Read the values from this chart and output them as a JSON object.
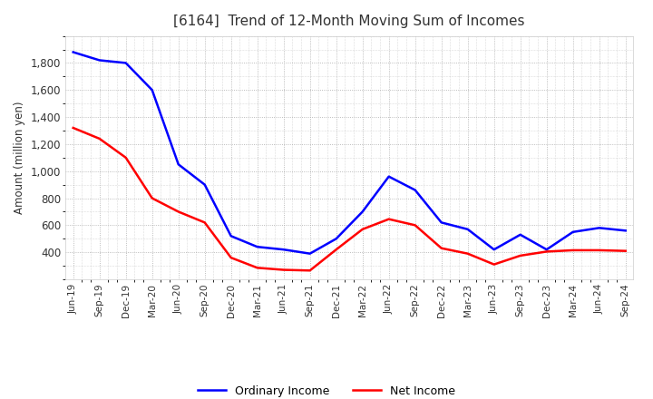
{
  "title": "[6164]  Trend of 12-Month Moving Sum of Incomes",
  "ylabel": "Amount (million yen)",
  "x_labels": [
    "Jun-19",
    "Sep-19",
    "Dec-19",
    "Mar-20",
    "Jun-20",
    "Sep-20",
    "Dec-20",
    "Mar-21",
    "Jun-21",
    "Sep-21",
    "Dec-21",
    "Mar-22",
    "Jun-22",
    "Sep-22",
    "Dec-22",
    "Mar-23",
    "Jun-23",
    "Sep-23",
    "Dec-23",
    "Mar-24",
    "Jun-24",
    "Sep-24"
  ],
  "ordinary_income": [
    1880,
    1820,
    1800,
    1600,
    1050,
    900,
    520,
    440,
    420,
    390,
    500,
    700,
    960,
    860,
    620,
    570,
    420,
    530,
    420,
    550,
    580,
    560
  ],
  "net_income": [
    1320,
    1240,
    1100,
    800,
    700,
    620,
    360,
    285,
    270,
    265,
    420,
    570,
    645,
    600,
    430,
    390,
    310,
    375,
    405,
    415,
    415,
    410
  ],
  "ordinary_income_color": "#0000FF",
  "net_income_color": "#FF0000",
  "ylim_min": 200,
  "ylim_max": 2000,
  "yticks": [
    400,
    600,
    800,
    1000,
    1200,
    1400,
    1600,
    1800
  ],
  "background_color": "#FFFFFF",
  "grid_color": "#AAAAAA",
  "legend_labels": [
    "Ordinary Income",
    "Net Income"
  ]
}
